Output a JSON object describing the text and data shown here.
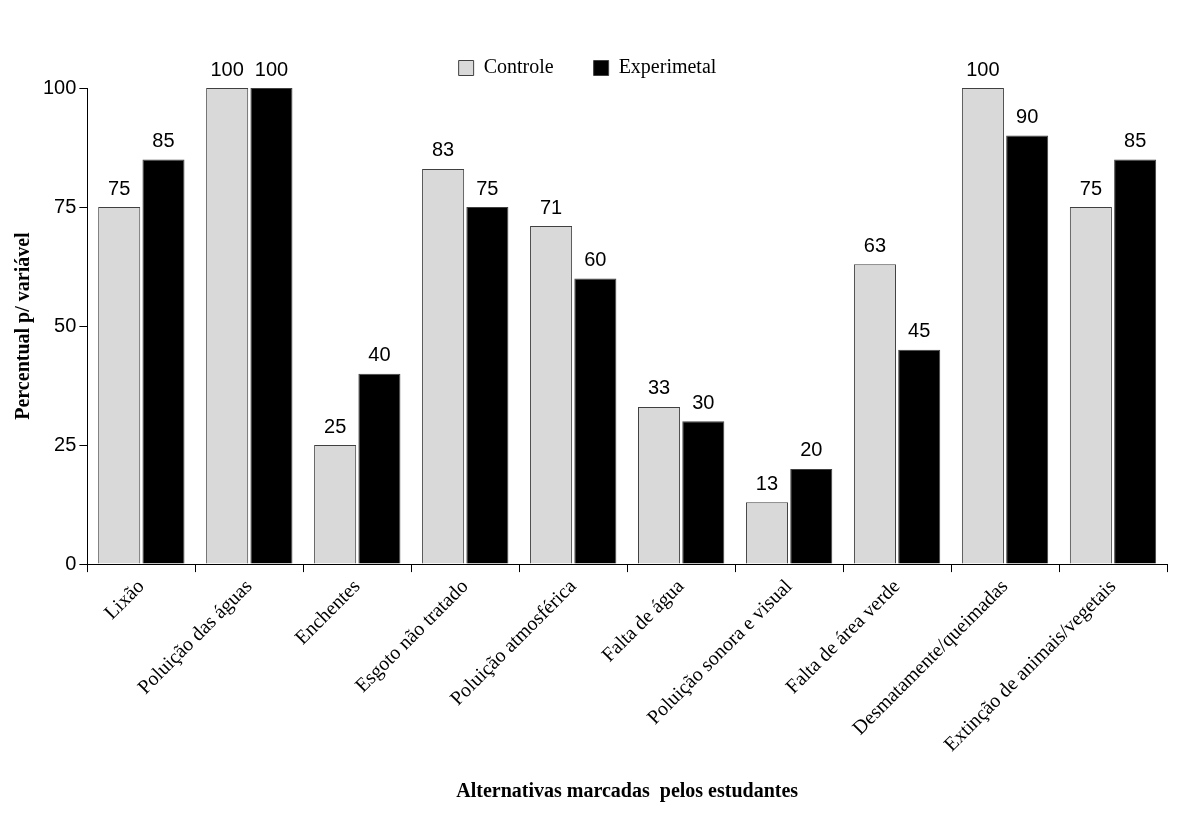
{
  "chart_data": {
    "type": "bar",
    "xlabel": "Alternativas marcadas  pelos estudantes",
    "ylabel": "Percentual p/ variável",
    "categories": [
      "Lixão",
      "Poluição das águas",
      "Enchentes",
      "Esgoto não tratado",
      "Poluição atmosférica",
      "Falta de água",
      "Poluição sonora e visual",
      "Falta de área verde",
      "Desmatamente/queimadas",
      "Extinção de animais/vegetais"
    ],
    "series": [
      {
        "name": "Controle",
        "color": "#d9d9d9",
        "values": [
          75,
          100,
          25,
          83,
          71,
          33,
          13,
          63,
          100,
          75
        ]
      },
      {
        "name": "Experimetal",
        "color": "#000000",
        "values": [
          85,
          100,
          40,
          75,
          60,
          30,
          20,
          45,
          90,
          85
        ]
      }
    ],
    "ylim": [
      0,
      100
    ],
    "yticks": [
      0,
      25,
      50,
      75,
      100
    ],
    "legend": "top",
    "data_labels": true
  }
}
